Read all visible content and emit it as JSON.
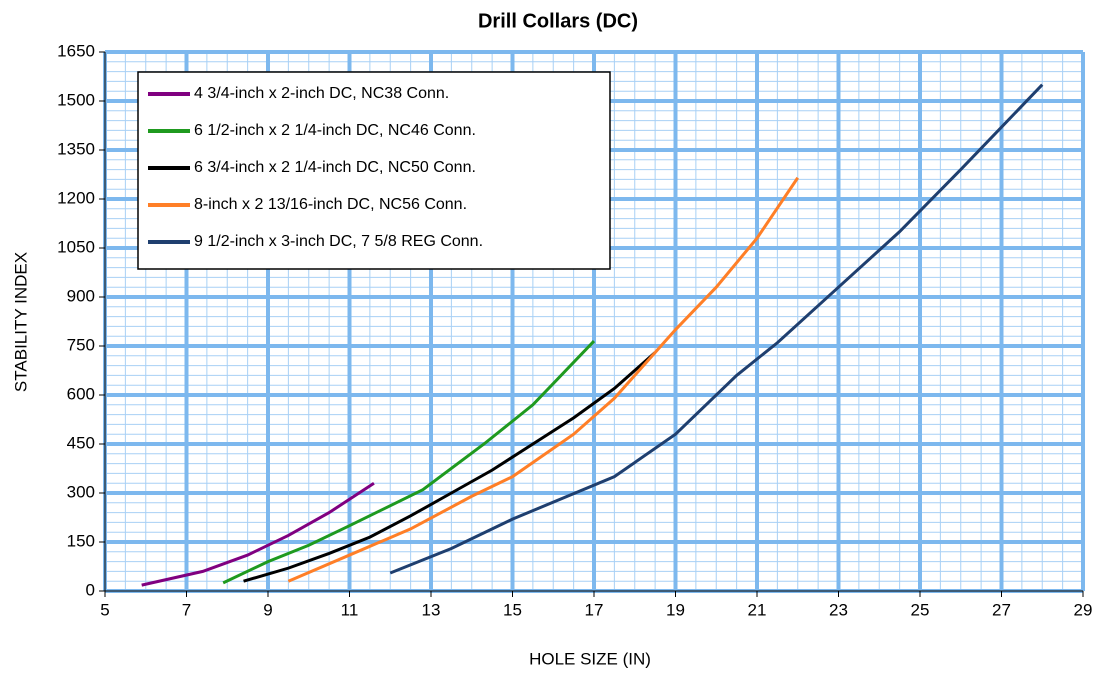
{
  "chart_data": {
    "type": "line",
    "title": "Drill Collars (DC)",
    "x_label": "HOLE SIZE (IN)",
    "y_label": "STABILITY INDEX",
    "xlim": [
      5,
      29
    ],
    "xticks": [
      5,
      7,
      9,
      11,
      13,
      15,
      17,
      19,
      21,
      23,
      25,
      27,
      29
    ],
    "ylim": [
      0,
      1650
    ],
    "yticks": [
      0,
      150,
      300,
      450,
      600,
      750,
      900,
      1050,
      1200,
      1350,
      1500,
      1650
    ],
    "grid": true,
    "minor_grid_step": {
      "x": 0.5,
      "y": 30
    },
    "legend": "upper left",
    "series": [
      {
        "name": "4 3/4-inch x 2-inch DC, NC38 Conn.",
        "color": "#800080",
        "x": [
          5.9,
          7.4,
          8.5,
          9.5,
          10.5,
          11.6
        ],
        "values": [
          18,
          60,
          110,
          170,
          240,
          330
        ]
      },
      {
        "name": "6 1/2-inch x 2 1/4-inch DC, NC46 Conn.",
        "color": "#1f9a1f",
        "x": [
          7.9,
          9,
          10,
          11,
          12.8,
          14.3,
          15.5,
          17
        ],
        "values": [
          25,
          90,
          140,
          200,
          310,
          450,
          570,
          765
        ]
      },
      {
        "name": "6 3/4-inch x 2 1/4-inch DC, NC50 Conn.",
        "color": "#000000",
        "x": [
          8.4,
          9.5,
          10.5,
          11.5,
          12.5,
          13.5,
          14.5,
          15.5,
          16.5,
          17.5,
          18.5
        ],
        "values": [
          30,
          70,
          115,
          165,
          230,
          300,
          370,
          450,
          530,
          620,
          730
        ]
      },
      {
        "name": "8-inch x 2 13/16-inch DC, NC56 Conn.",
        "color": "#ff7f27",
        "x": [
          9.5,
          11,
          12.5,
          14,
          15,
          16.5,
          17.5,
          18.5,
          19,
          20,
          21,
          22
        ],
        "values": [
          30,
          110,
          190,
          290,
          350,
          480,
          590,
          730,
          800,
          930,
          1080,
          1265
        ]
      },
      {
        "name": "9 1/2-inch x 3-inch DC, 7 5/8 REG Conn.",
        "color": "#1f3f6f",
        "x": [
          12,
          13.5,
          15,
          17.5,
          19,
          20.5,
          21.5,
          23,
          24.5,
          26,
          28
        ],
        "values": [
          55,
          130,
          220,
          350,
          480,
          660,
          760,
          930,
          1100,
          1290,
          1550
        ]
      }
    ]
  }
}
